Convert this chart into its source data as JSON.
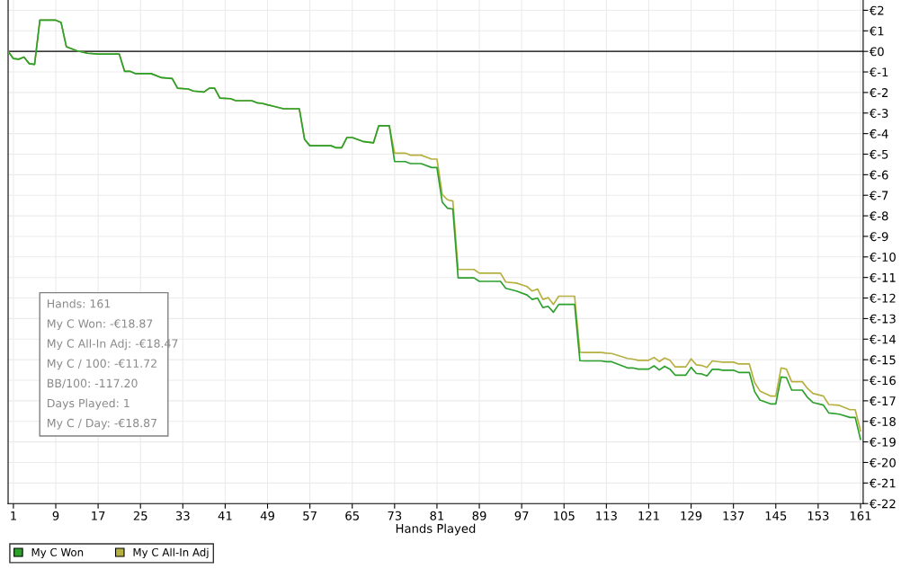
{
  "chart_data": {
    "type": "line",
    "xlabel": "Hands Played",
    "x": [
      0,
      1,
      2,
      3,
      4,
      5,
      6,
      9,
      10,
      11,
      12,
      13,
      15,
      17,
      21,
      22,
      23,
      24,
      27,
      29,
      31,
      32,
      34,
      35,
      37,
      38,
      39,
      40,
      42,
      43,
      46,
      47,
      48,
      49,
      50,
      52,
      55,
      56,
      57,
      61,
      62,
      63,
      64,
      65,
      67,
      69,
      70,
      72,
      73,
      75,
      76,
      78,
      80,
      81,
      82,
      83,
      84,
      85,
      88,
      89,
      93,
      94,
      96,
      98,
      99,
      100,
      101,
      102,
      103,
      104,
      107,
      108,
      109,
      112,
      113,
      114,
      117,
      118,
      119,
      121,
      122,
      123,
      124,
      125,
      126,
      128,
      129,
      130,
      131,
      132,
      133,
      134,
      135,
      137,
      138,
      140,
      141,
      142,
      144,
      145,
      146,
      147,
      148,
      150,
      151,
      152,
      154,
      155,
      157,
      159,
      160,
      161
    ],
    "series": [
      {
        "name": "My C Won",
        "color": "#2ca02c",
        "values": [
          0,
          -0.35,
          -0.38,
          -0.28,
          -0.6,
          -0.63,
          1.52,
          1.52,
          1.41,
          0.23,
          0.13,
          0.03,
          -0.09,
          -0.13,
          -0.13,
          -0.97,
          -0.97,
          -1.08,
          -1.08,
          -1.28,
          -1.32,
          -1.79,
          -1.83,
          -1.93,
          -1.98,
          -1.79,
          -1.79,
          -2.27,
          -2.3,
          -2.4,
          -2.4,
          -2.5,
          -2.53,
          -2.6,
          -2.66,
          -2.79,
          -2.79,
          -4.28,
          -4.59,
          -4.59,
          -4.69,
          -4.69,
          -4.19,
          -4.19,
          -4.38,
          -4.45,
          -3.62,
          -3.62,
          -5.36,
          -5.36,
          -5.46,
          -5.46,
          -5.65,
          -5.65,
          -7.34,
          -7.63,
          -7.67,
          -11.02,
          -11.02,
          -11.19,
          -11.19,
          -11.53,
          -11.66,
          -11.85,
          -12.07,
          -12.0,
          -12.46,
          -12.4,
          -12.69,
          -12.31,
          -12.31,
          -15.05,
          -15.06,
          -15.06,
          -15.1,
          -15.1,
          -15.4,
          -15.4,
          -15.46,
          -15.46,
          -15.3,
          -15.5,
          -15.32,
          -15.46,
          -15.75,
          -15.75,
          -15.37,
          -15.67,
          -15.69,
          -15.79,
          -15.47,
          -15.47,
          -15.51,
          -15.51,
          -15.62,
          -15.62,
          -16.55,
          -16.96,
          -17.15,
          -17.15,
          -15.84,
          -15.87,
          -16.48,
          -16.48,
          -16.84,
          -17.08,
          -17.21,
          -17.59,
          -17.65,
          -17.81,
          -17.81,
          -18.87
        ]
      },
      {
        "name": "My C All-In Adj",
        "color": "#b5b040",
        "values": [
          0,
          -0.35,
          -0.38,
          -0.28,
          -0.6,
          -0.63,
          1.52,
          1.52,
          1.41,
          0.23,
          0.13,
          0.03,
          -0.09,
          -0.13,
          -0.13,
          -0.97,
          -0.97,
          -1.08,
          -1.08,
          -1.28,
          -1.32,
          -1.79,
          -1.83,
          -1.93,
          -1.98,
          -1.79,
          -1.79,
          -2.27,
          -2.3,
          -2.4,
          -2.4,
          -2.5,
          -2.53,
          -2.6,
          -2.66,
          -2.79,
          -2.79,
          -4.28,
          -4.59,
          -4.59,
          -4.69,
          -4.69,
          -4.19,
          -4.19,
          -4.38,
          -4.45,
          -3.62,
          -3.62,
          -4.95,
          -4.95,
          -5.05,
          -5.05,
          -5.24,
          -5.24,
          -6.96,
          -7.22,
          -7.28,
          -10.61,
          -10.61,
          -10.79,
          -10.79,
          -11.22,
          -11.27,
          -11.44,
          -11.66,
          -11.56,
          -12.07,
          -11.98,
          -12.31,
          -11.91,
          -11.91,
          -14.64,
          -14.65,
          -14.65,
          -14.68,
          -14.7,
          -14.94,
          -14.97,
          -15.03,
          -15.03,
          -14.89,
          -15.09,
          -14.92,
          -15.03,
          -15.35,
          -15.35,
          -14.96,
          -15.25,
          -15.28,
          -15.38,
          -15.06,
          -15.09,
          -15.12,
          -15.12,
          -15.21,
          -15.21,
          -16.11,
          -16.52,
          -16.77,
          -16.77,
          -15.4,
          -15.46,
          -16.07,
          -16.07,
          -16.4,
          -16.64,
          -16.77,
          -17.18,
          -17.22,
          -17.43,
          -17.43,
          -18.47
        ]
      }
    ],
    "xlim": [
      0,
      161.5
    ],
    "xticks": [
      1,
      9,
      17,
      25,
      33,
      41,
      49,
      57,
      65,
      73,
      81,
      89,
      97,
      105,
      113,
      121,
      129,
      137,
      145,
      153,
      161
    ],
    "ylim": [
      -22,
      2.5
    ],
    "yticks": [
      {
        "value": 2,
        "label": "€2"
      },
      {
        "value": 1,
        "label": "€1"
      },
      {
        "value": 0,
        "label": "€0"
      },
      {
        "value": -1,
        "label": "€-1"
      },
      {
        "value": -2,
        "label": "€-2"
      },
      {
        "value": -3,
        "label": "€-3"
      },
      {
        "value": -4,
        "label": "€-4"
      },
      {
        "value": -5,
        "label": "€-5"
      },
      {
        "value": -6,
        "label": "€-6"
      },
      {
        "value": -7,
        "label": "€-7"
      },
      {
        "value": -8,
        "label": "€-8"
      },
      {
        "value": -9,
        "label": "€-9"
      },
      {
        "value": -10,
        "label": "€-10"
      },
      {
        "value": -11,
        "label": "€-11"
      },
      {
        "value": -12,
        "label": "€-12"
      },
      {
        "value": -13,
        "label": "€-13"
      },
      {
        "value": -14,
        "label": "€-14"
      },
      {
        "value": -15,
        "label": "€-15"
      },
      {
        "value": -16,
        "label": "€-16"
      },
      {
        "value": -17,
        "label": "€-17"
      },
      {
        "value": -18,
        "label": "€-18"
      },
      {
        "value": -19,
        "label": "€-19"
      },
      {
        "value": -20,
        "label": "€-20"
      },
      {
        "value": -21,
        "label": "€-21"
      },
      {
        "value": -22,
        "label": "€-22"
      }
    ],
    "ref_lines": [
      {
        "axis": "y",
        "value": 0,
        "color": "#000000"
      }
    ],
    "annotations": [
      "Hands: 161",
      "My C Won: -€18.87",
      "My C All-In Adj: -€18.47",
      "My C / 100: -€11.72",
      "BB/100: -117.20",
      "Days Played: 1",
      "My C / Day: -€18.87"
    ],
    "grid": true,
    "legend": "bottom left",
    "marker": "none",
    "line_style": "solid"
  }
}
